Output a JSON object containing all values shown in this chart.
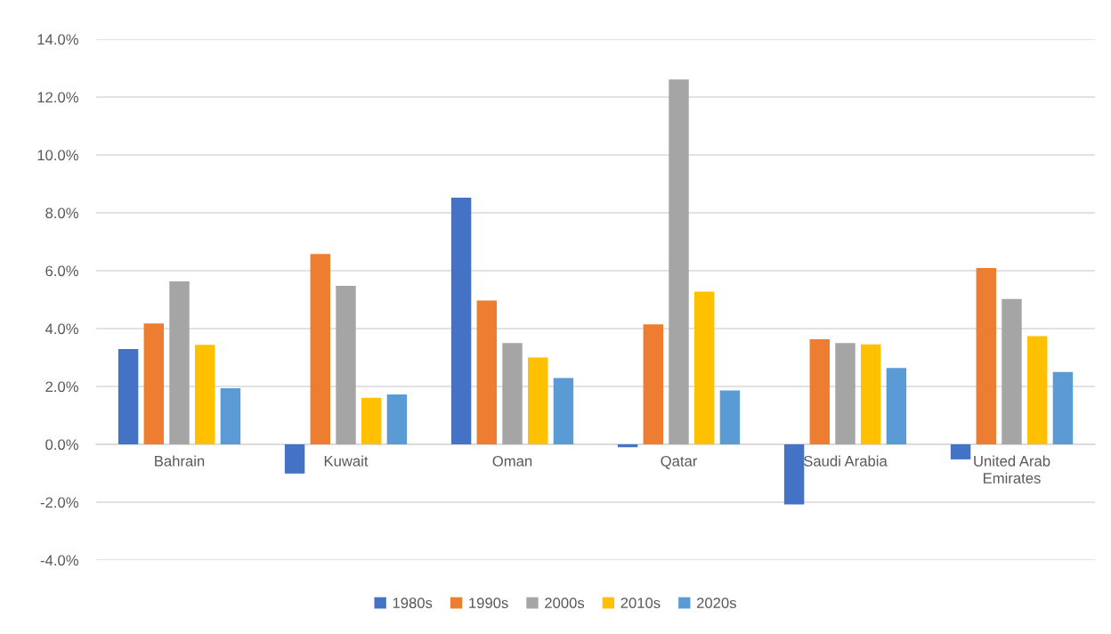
{
  "chart_data": {
    "type": "bar",
    "categories": [
      "Bahrain",
      "Kuwait",
      "Oman",
      "Qatar",
      "Saudi Arabia",
      "United Arab Emirates"
    ],
    "series": [
      {
        "name": "1980s",
        "color": "#4472c4",
        "values": [
          3.29,
          -1.01,
          8.52,
          -0.1,
          -2.08,
          -0.52
        ]
      },
      {
        "name": "1990s",
        "color": "#ed7d31",
        "values": [
          4.18,
          6.58,
          4.97,
          4.15,
          3.63,
          6.09
        ]
      },
      {
        "name": "2000s",
        "color": "#a5a5a5",
        "values": [
          5.63,
          5.48,
          3.5,
          12.61,
          3.5,
          5.02
        ]
      },
      {
        "name": "2010s",
        "color": "#ffc000",
        "values": [
          3.44,
          1.61,
          3.0,
          5.28,
          3.45,
          3.74
        ]
      },
      {
        "name": "2020s",
        "color": "#5b9bd5",
        "values": [
          1.94,
          1.72,
          2.29,
          1.86,
          2.64,
          2.5
        ]
      }
    ],
    "ylim": [
      -4,
      14
    ],
    "yticks": [
      {
        "value": -4,
        "label": "-4.0%"
      },
      {
        "value": -2,
        "label": "-2.0%"
      },
      {
        "value": 0,
        "label": "0.0%"
      },
      {
        "value": 2,
        "label": "2.0%"
      },
      {
        "value": 4,
        "label": "4.0%"
      },
      {
        "value": 6,
        "label": "6.0%"
      },
      {
        "value": 8,
        "label": "8.0%"
      },
      {
        "value": 10,
        "label": "10.0%"
      },
      {
        "value": 12,
        "label": "12.0%"
      },
      {
        "value": 14,
        "label": "14.0%"
      }
    ],
    "grid": "y",
    "legend": "bottom"
  }
}
